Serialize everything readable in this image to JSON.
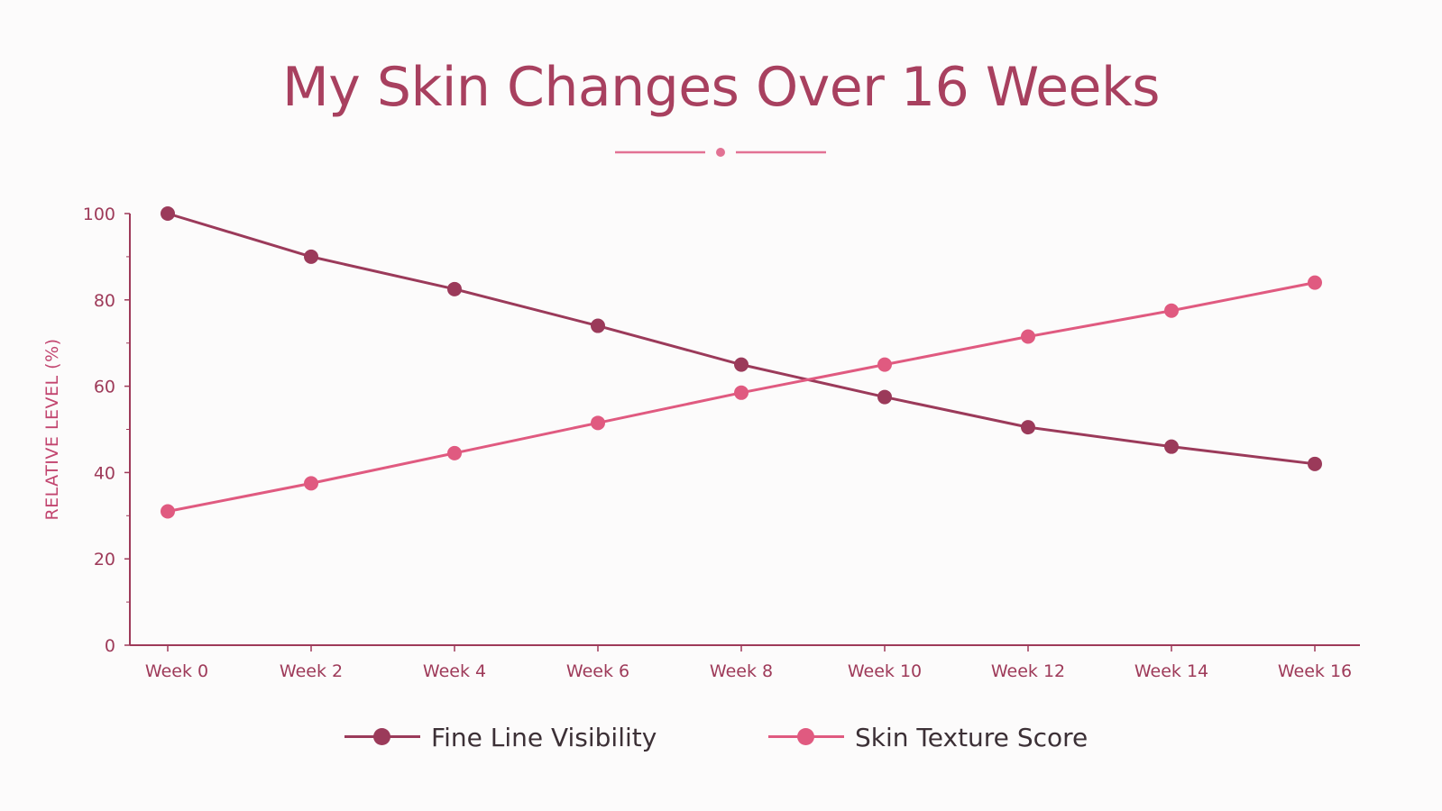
{
  "colors": {
    "title": "#a8405f",
    "axis": "#9e3a59",
    "fine_line": "#9b3a5a",
    "skin_texture": "#e05a80",
    "divider": "#e27294"
  },
  "chart_data": {
    "type": "line",
    "title": "My Skin Changes Over 16 Weeks",
    "xlabel": "",
    "ylabel": "RELATIVE LEVEL (%)",
    "categories": [
      "Week 0",
      "Week 2",
      "Week 4",
      "Week 6",
      "Week 8",
      "Week 10",
      "Week 12",
      "Week 14",
      "Week 16"
    ],
    "yticks": [
      "0",
      "20",
      "40",
      "60",
      "80",
      "100"
    ],
    "ylim": [
      0,
      100
    ],
    "grid": false,
    "legend_position": "bottom",
    "series": [
      {
        "name": "Fine Line Visibility",
        "values": [
          100,
          90,
          82.5,
          74,
          65,
          57.5,
          50.5,
          46,
          42
        ],
        "color": "#9b3a5a"
      },
      {
        "name": "Skin Texture Score",
        "values": [
          31,
          37.5,
          44.5,
          51.5,
          58.5,
          65,
          71.5,
          77.5,
          84
        ],
        "color": "#e05a80"
      }
    ]
  }
}
